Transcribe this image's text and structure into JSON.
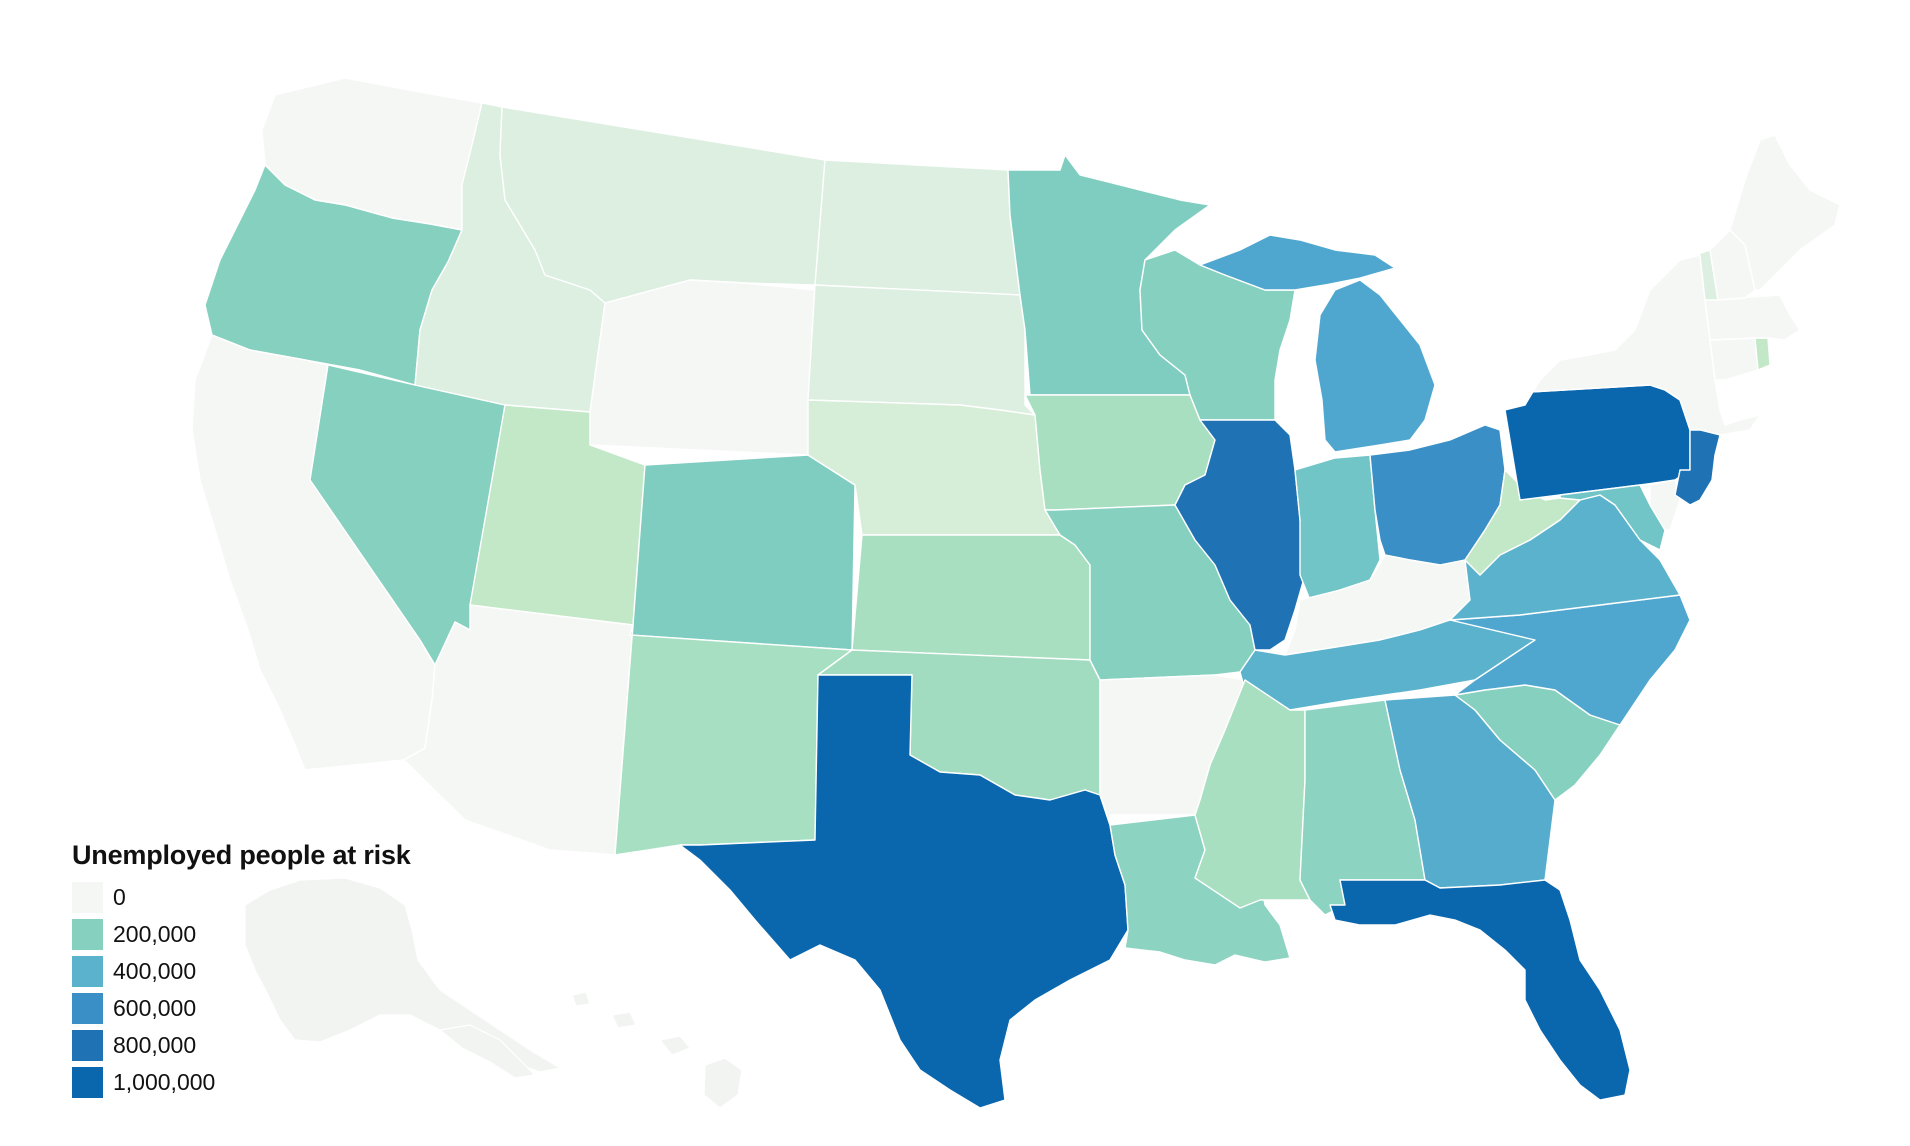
{
  "legend": {
    "title": "Unemployed people at risk",
    "items": [
      {
        "label": "0",
        "color": "#f5f7f5"
      },
      {
        "label": "200,000",
        "color": "#86d0c0"
      },
      {
        "label": "400,000",
        "color": "#5bb2cc"
      },
      {
        "label": "600,000",
        "color": "#3a8fc6"
      },
      {
        "label": "800,000",
        "color": "#1f73b4"
      },
      {
        "label": "1,000,000",
        "color": "#0a67ae"
      }
    ]
  },
  "map_data": {
    "type": "choropleth",
    "region": "United States",
    "states": [
      {
        "name": "Washington",
        "color": "#f5f7f5"
      },
      {
        "name": "Oregon",
        "color": "#86d0c0"
      },
      {
        "name": "California",
        "color": "#f5f7f5"
      },
      {
        "name": "Nevada",
        "color": "#86d0c0"
      },
      {
        "name": "Idaho",
        "color": "#dcefe0"
      },
      {
        "name": "Montana",
        "color": "#dcefe0"
      },
      {
        "name": "Wyoming",
        "color": "#f5f7f5"
      },
      {
        "name": "Utah",
        "color": "#c3e8c7"
      },
      {
        "name": "Colorado",
        "color": "#7fcdc1"
      },
      {
        "name": "Arizona",
        "color": "#f5f7f5"
      },
      {
        "name": "New Mexico",
        "color": "#a7dfc2"
      },
      {
        "name": "North Dakota",
        "color": "#dcefe0"
      },
      {
        "name": "South Dakota",
        "color": "#dcefe0"
      },
      {
        "name": "Nebraska",
        "color": "#d6eed8"
      },
      {
        "name": "Kansas",
        "color": "#a9dfc1"
      },
      {
        "name": "Oklahoma",
        "color": "#a2dcc0"
      },
      {
        "name": "Texas",
        "color": "#0a67ae"
      },
      {
        "name": "Minnesota",
        "color": "#7fcdc1"
      },
      {
        "name": "Iowa",
        "color": "#a9dfc1"
      },
      {
        "name": "Missouri",
        "color": "#86d0c0"
      },
      {
        "name": "Arkansas",
        "color": "#f5f7f5"
      },
      {
        "name": "Louisiana",
        "color": "#8dd3c1"
      },
      {
        "name": "Wisconsin",
        "color": "#86d0c0"
      },
      {
        "name": "Illinois",
        "color": "#1f73b4"
      },
      {
        "name": "Michigan",
        "color": "#4fa7cf"
      },
      {
        "name": "Indiana",
        "color": "#72c5c6"
      },
      {
        "name": "Ohio",
        "color": "#3a8fc6"
      },
      {
        "name": "Kentucky",
        "color": "#f5f7f5"
      },
      {
        "name": "Tennessee",
        "color": "#5bb2cc"
      },
      {
        "name": "Mississippi",
        "color": "#a9dfc1"
      },
      {
        "name": "Alabama",
        "color": "#8dd3c1"
      },
      {
        "name": "Georgia",
        "color": "#55accd"
      },
      {
        "name": "Florida",
        "color": "#0a67ae"
      },
      {
        "name": "South Carolina",
        "color": "#86d0c0"
      },
      {
        "name": "North Carolina",
        "color": "#4fa7cf"
      },
      {
        "name": "Virginia",
        "color": "#5bb2cc"
      },
      {
        "name": "West Virginia",
        "color": "#c3e8c7"
      },
      {
        "name": "Pennsylvania",
        "color": "#0a67ae"
      },
      {
        "name": "New York",
        "color": "#f5f7f5"
      },
      {
        "name": "Maryland",
        "color": "#72c5c6"
      },
      {
        "name": "Delaware",
        "color": "#f5f7f5"
      },
      {
        "name": "New Jersey",
        "color": "#1f73b4"
      },
      {
        "name": "Connecticut",
        "color": "#f5f7f5"
      },
      {
        "name": "Rhode Island",
        "color": "#c3e8c7"
      },
      {
        "name": "Massachusetts",
        "color": "#f5f7f5"
      },
      {
        "name": "Vermont",
        "color": "#dcefe0"
      },
      {
        "name": "New Hampshire",
        "color": "#f5f7f5"
      },
      {
        "name": "Maine",
        "color": "#f5f7f5"
      },
      {
        "name": "Alaska",
        "color": "#f5f7f5"
      },
      {
        "name": "Hawaii",
        "color": "#f5f7f5"
      }
    ]
  }
}
